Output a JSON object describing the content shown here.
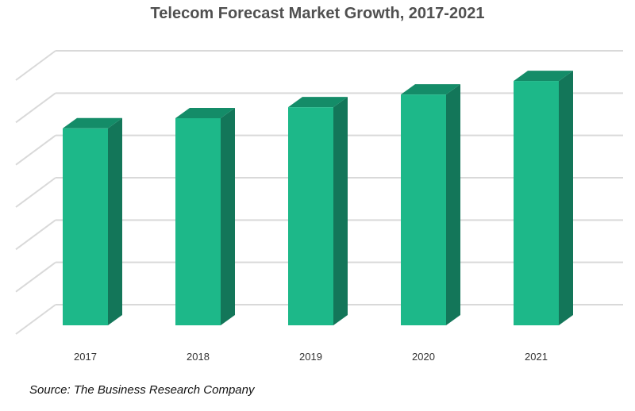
{
  "chart_data": {
    "type": "bar",
    "title": "Telecom Forecast Market Growth, 2017-2021",
    "categories": [
      "2017",
      "2018",
      "2019",
      "2020",
      "2021"
    ],
    "values": [
      4.41,
      4.65,
      4.91,
      5.21,
      5.53
    ],
    "xlabel": "",
    "ylabel": "",
    "ylim": [
      0,
      6
    ],
    "grid": true,
    "bar_color": "#1db889",
    "bar_top_color": "#148c68",
    "bar_side_color": "#137659",
    "grid_color": "#d9d9d9",
    "source": "Source: The Business Research Company"
  }
}
